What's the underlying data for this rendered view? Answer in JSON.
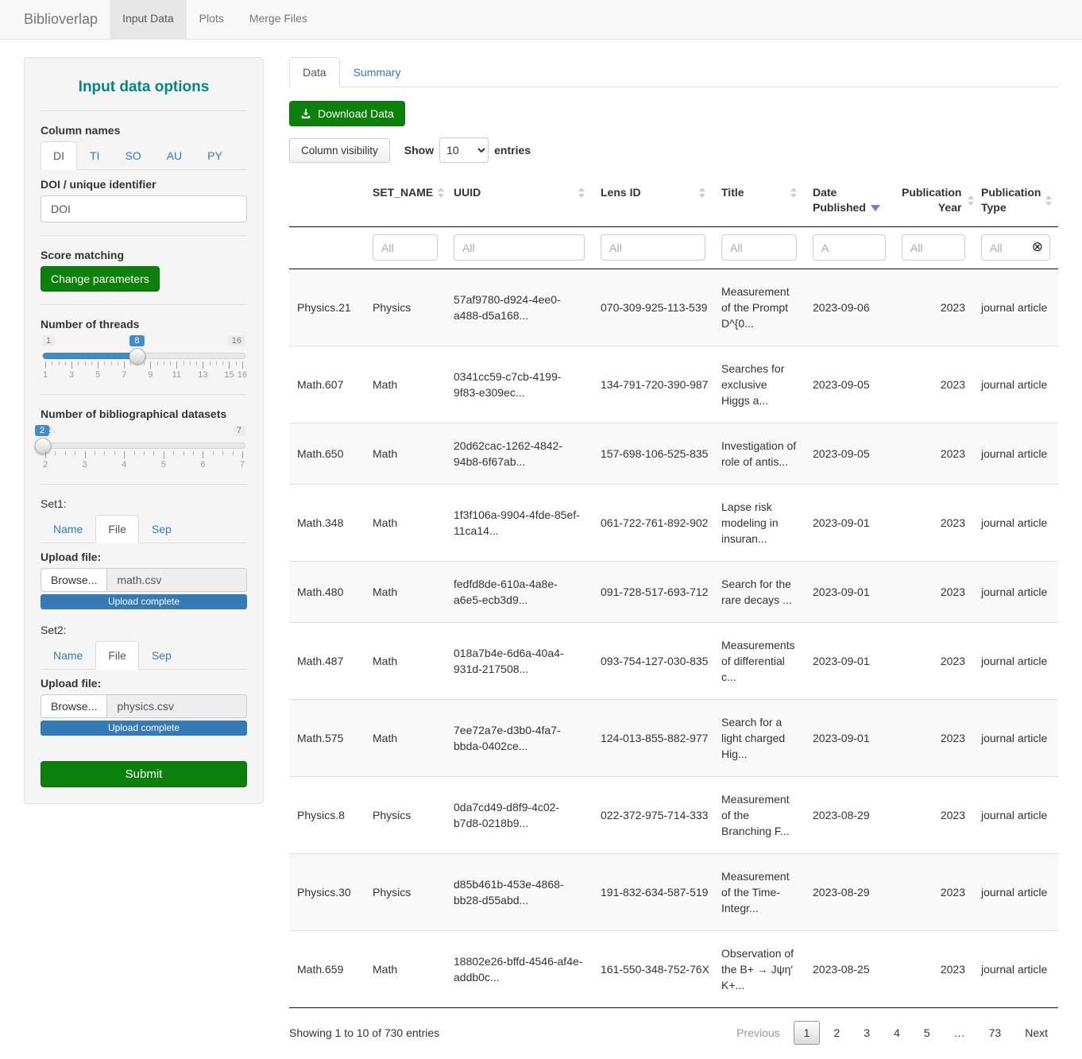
{
  "colors": {
    "teal": "#058585",
    "green": "#0b800b",
    "green-border": "#0a700a",
    "link": "#337ab7",
    "slider-blue": "#428bca",
    "progress-blue": "#337ab7",
    "sort-active": "#7577d9"
  },
  "navbar": {
    "brand": "Biblioverlap",
    "tabs": [
      {
        "label": "Input Data",
        "active": true
      },
      {
        "label": "Plots",
        "active": false
      },
      {
        "label": "Merge Files",
        "active": false
      }
    ]
  },
  "sidebar": {
    "title": "Input data options",
    "column_names": {
      "label": "Column names",
      "tabs": [
        "DI",
        "TI",
        "SO",
        "AU",
        "PY"
      ],
      "active_tab": "DI",
      "field_label": "DOI / unique identifier",
      "field_value": "DOI"
    },
    "score_matching": {
      "label": "Score matching",
      "button_label": "Change parameters"
    },
    "sliders": [
      {
        "label": "Number of threads",
        "min": 1,
        "max": 16,
        "value": 8,
        "minor_step": 0.5,
        "tick_labels": [
          1,
          3,
          5,
          7,
          9,
          11,
          13,
          15,
          16
        ]
      },
      {
        "label": "Number of bibliographical datasets",
        "min": 2,
        "max": 7,
        "value": 2,
        "minor_step": 0.25,
        "tick_labels": [
          2,
          3,
          4,
          5,
          6,
          7
        ]
      }
    ],
    "sets": [
      {
        "label": "Set1:",
        "tabs": [
          "Name",
          "File",
          "Sep"
        ],
        "active_tab": "File",
        "upload_label": "Upload file:",
        "browse_label": "Browse...",
        "filename": "math.csv",
        "progress_text": "Upload complete"
      },
      {
        "label": "Set2:",
        "tabs": [
          "Name",
          "File",
          "Sep"
        ],
        "active_tab": "File",
        "upload_label": "Upload file:",
        "browse_label": "Browse...",
        "filename": "physics.csv",
        "progress_text": "Upload complete"
      }
    ],
    "submit_label": "Submit"
  },
  "main": {
    "tabs": [
      {
        "label": "Data",
        "active": true
      },
      {
        "label": "Summary",
        "active": false
      }
    ],
    "download_label": "Download Data",
    "colvis_label": "Column visibility",
    "length_control": {
      "show": "Show",
      "selected": "10",
      "entries": "entries"
    },
    "table": {
      "columns": [
        {
          "label": "",
          "sort": "none"
        },
        {
          "label": "SET_NAME",
          "sort": "idle"
        },
        {
          "label": "UUID",
          "sort": "idle"
        },
        {
          "label": "Lens ID",
          "sort": "idle"
        },
        {
          "label": "Title",
          "sort": "idle"
        },
        {
          "label": "Date Published",
          "sort": "desc"
        },
        {
          "label": "Publication Year",
          "sort": "idle",
          "align": "right"
        },
        {
          "label": "Publication Type",
          "sort": "idle"
        }
      ],
      "filters": [
        {
          "empty": true
        },
        {
          "placeholder": "All"
        },
        {
          "placeholder": "All"
        },
        {
          "placeholder": "All"
        },
        {
          "placeholder": "All"
        },
        {
          "placeholder": "A"
        },
        {
          "placeholder": "All"
        },
        {
          "placeholder": "All",
          "clearable": true,
          "clear_icon": "circled-x"
        }
      ],
      "rows": [
        {
          "name": "Physics.21",
          "set_name": "Physics",
          "uuid": "57af9780-d924-4ee0-a488-d5a168...",
          "lens_id": "070-309-925-113-539",
          "title": "Measurement of the Prompt D^{0...",
          "date_published": "2023-09-06",
          "year": "2023",
          "type": "journal article"
        },
        {
          "name": "Math.607",
          "set_name": "Math",
          "uuid": "0341cc59-c7cb-4199-9f83-e309ec...",
          "lens_id": "134-791-720-390-987",
          "title": "Searches for exclusive Higgs a...",
          "date_published": "2023-09-05",
          "year": "2023",
          "type": "journal article"
        },
        {
          "name": "Math.650",
          "set_name": "Math",
          "uuid": "20d62cac-1262-4842-94b8-6f67ab...",
          "lens_id": "157-698-106-525-835",
          "title": "Investigation of role of antis...",
          "date_published": "2023-09-05",
          "year": "2023",
          "type": "journal article"
        },
        {
          "name": "Math.348",
          "set_name": "Math",
          "uuid": "1f3f106a-9904-4fde-85ef-11ca14...",
          "lens_id": "061-722-761-892-902",
          "title": "Lapse risk modeling in insuran...",
          "date_published": "2023-09-01",
          "year": "2023",
          "type": "journal article"
        },
        {
          "name": "Math.480",
          "set_name": "Math",
          "uuid": "fedfd8de-610a-4a8e-a6e5-ecb3d9...",
          "lens_id": "091-728-517-693-712",
          "title": "Search for the rare decays ...",
          "date_published": "2023-09-01",
          "year": "2023",
          "type": "journal article"
        },
        {
          "name": "Math.487",
          "set_name": "Math",
          "uuid": "018a7b4e-6d6a-40a4-931d-217508...",
          "lens_id": "093-754-127-030-835",
          "title": "Measurements of differential c...",
          "date_published": "2023-09-01",
          "year": "2023",
          "type": "journal article"
        },
        {
          "name": "Math.575",
          "set_name": "Math",
          "uuid": "7ee72a7e-d3b0-4fa7-bbda-0402ce...",
          "lens_id": "124-013-855-882-977",
          "title": "Search for a light charged Hig...",
          "date_published": "2023-09-01",
          "year": "2023",
          "type": "journal article"
        },
        {
          "name": "Physics.8",
          "set_name": "Physics",
          "uuid": "0da7cd49-d8f9-4c02-b7d8-0218b9...",
          "lens_id": "022-372-975-714-333",
          "title": "Measurement of the Branching F...",
          "date_published": "2023-08-29",
          "year": "2023",
          "type": "journal article"
        },
        {
          "name": "Physics.30",
          "set_name": "Physics",
          "uuid": "d85b461b-453e-4868-bb28-d55abd...",
          "lens_id": "191-832-634-587-519",
          "title": "Measurement of the Time-Integr...",
          "date_published": "2023-08-29",
          "year": "2023",
          "type": "journal article"
        },
        {
          "name": "Math.659",
          "set_name": "Math",
          "uuid": "18802e26-bffd-4546-af4e-addb0c...",
          "lens_id": "161-550-348-752-76X",
          "title": "Observation of the B+ → Jψη′ K+...",
          "date_published": "2023-08-25",
          "year": "2023",
          "type": "journal article"
        }
      ],
      "info": "Showing 1 to 10 of 730 entries",
      "pagination": {
        "previous": "Previous",
        "pages": [
          "1",
          "2",
          "3",
          "4",
          "5",
          "…",
          "73"
        ],
        "active_page": "1",
        "next": "Next"
      }
    }
  }
}
